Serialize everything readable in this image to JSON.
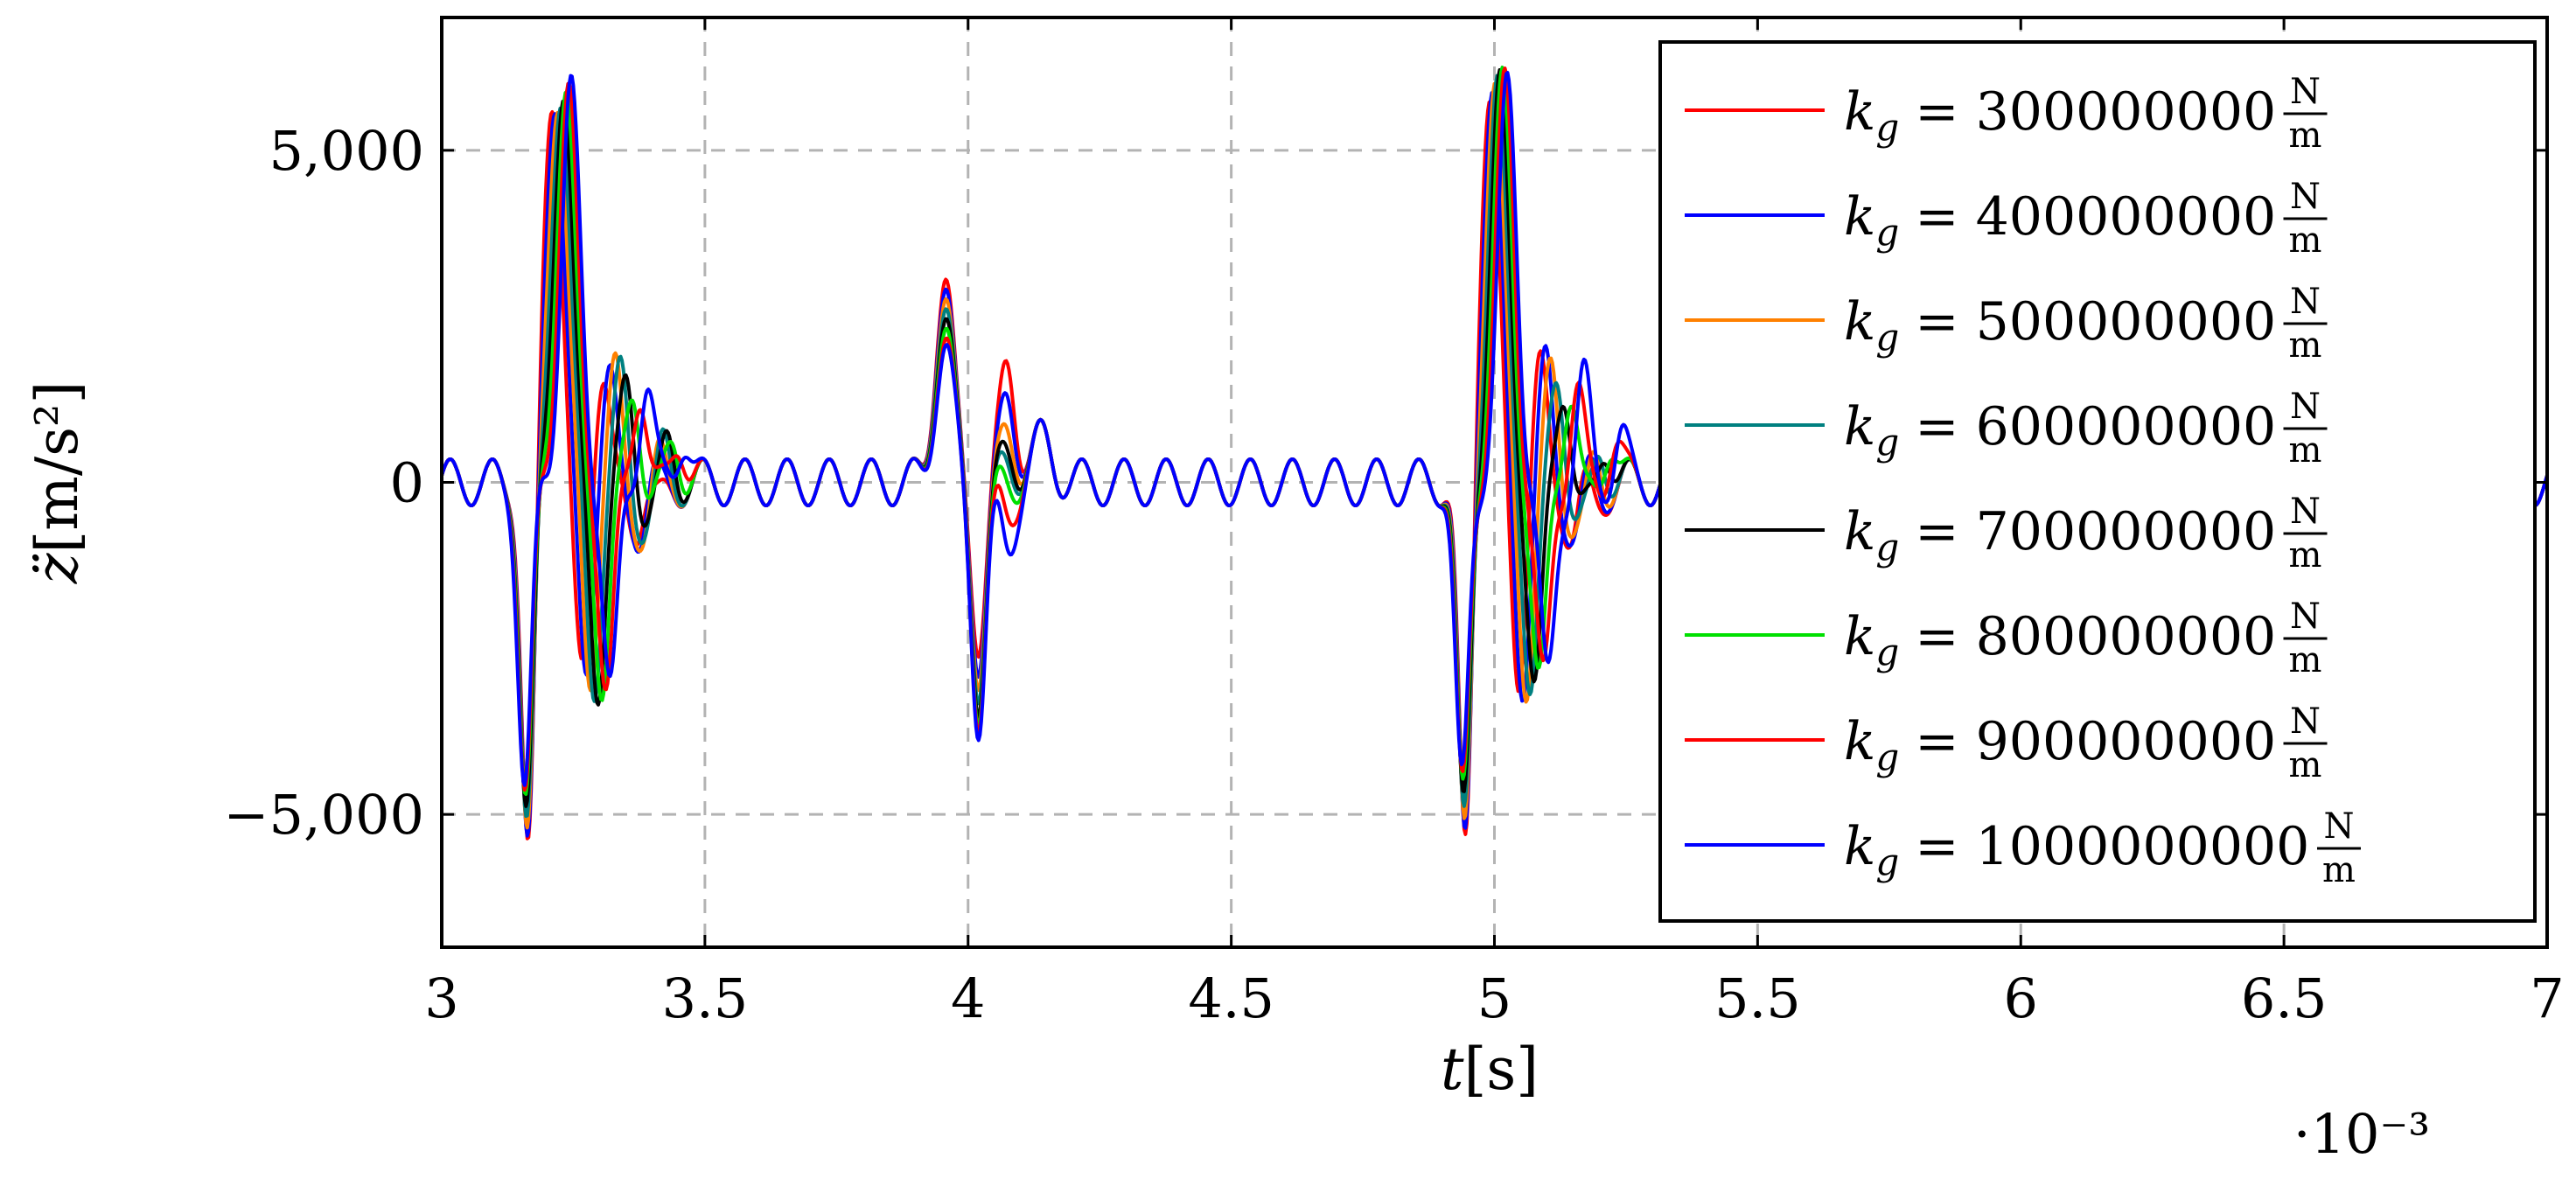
{
  "chart_data": {
    "type": "line",
    "xlabel": "t[s]",
    "ylabel": "z̈[m/s²]",
    "x_scale_note": "·10⁻³",
    "xlim": [
      0.003,
      0.007
    ],
    "ylim": [
      -7000,
      7000
    ],
    "x_ticks": [
      0.003,
      0.0035,
      0.004,
      0.0045,
      0.005,
      0.0055,
      0.006,
      0.0065,
      0.007
    ],
    "x_tick_labels": [
      "3",
      "3.5",
      "4",
      "4.5",
      "5",
      "5.5",
      "6",
      "6.5",
      "7"
    ],
    "y_ticks": [
      -5000,
      0,
      5000
    ],
    "y_tick_labels": [
      "−5,000",
      "0",
      "5,000"
    ],
    "grid": true,
    "grid_style": "dashed",
    "legend_position": "top-right",
    "series": [
      {
        "name": "k_g = 300000000 N/m",
        "color": "#ff0000",
        "peak": 5900,
        "trough": -5800,
        "mid_peak": 3050,
        "mid_trough": -2300
      },
      {
        "name": "k_g = 400000000 N/m",
        "color": "#0000ff",
        "peak": 5900,
        "trough": -5600,
        "mid_peak": 2900,
        "mid_trough": -2600
      },
      {
        "name": "k_g = 500000000 N/m",
        "color": "#ff8000",
        "peak": 5900,
        "trough": -5400,
        "mid_peak": 2750,
        "mid_trough": -2800
      },
      {
        "name": "k_g = 600000000 N/m",
        "color": "#008080",
        "peak": 5900,
        "trough": -5200,
        "mid_peak": 2600,
        "mid_trough": -3000
      },
      {
        "name": "k_g = 700000000 N/m",
        "color": "#000000",
        "peak": 5900,
        "trough": -5000,
        "mid_peak": 2450,
        "mid_trough": -3200
      },
      {
        "name": "k_g = 800000000 N/m",
        "color": "#00e000",
        "peak": 5900,
        "trough": -4800,
        "mid_peak": 2300,
        "mid_trough": -3350
      },
      {
        "name": "k_g = 900000000 N/m",
        "color": "#ff0000",
        "peak": 5900,
        "trough": -4700,
        "mid_peak": 2150,
        "mid_trough": -3450
      },
      {
        "name": "k_g = 1000000000 N/m",
        "color": "#0000ff",
        "peak": 5900,
        "trough": -4600,
        "mid_peak": 2050,
        "mid_trough": -3550
      }
    ]
  },
  "legend": {
    "prefix": "k",
    "subscript": "g",
    "equals": "=",
    "unit_num": "N",
    "unit_den": "m",
    "values": [
      "300000000",
      "400000000",
      "500000000",
      "600000000",
      "700000000",
      "800000000",
      "900000000",
      "1000000000"
    ]
  }
}
